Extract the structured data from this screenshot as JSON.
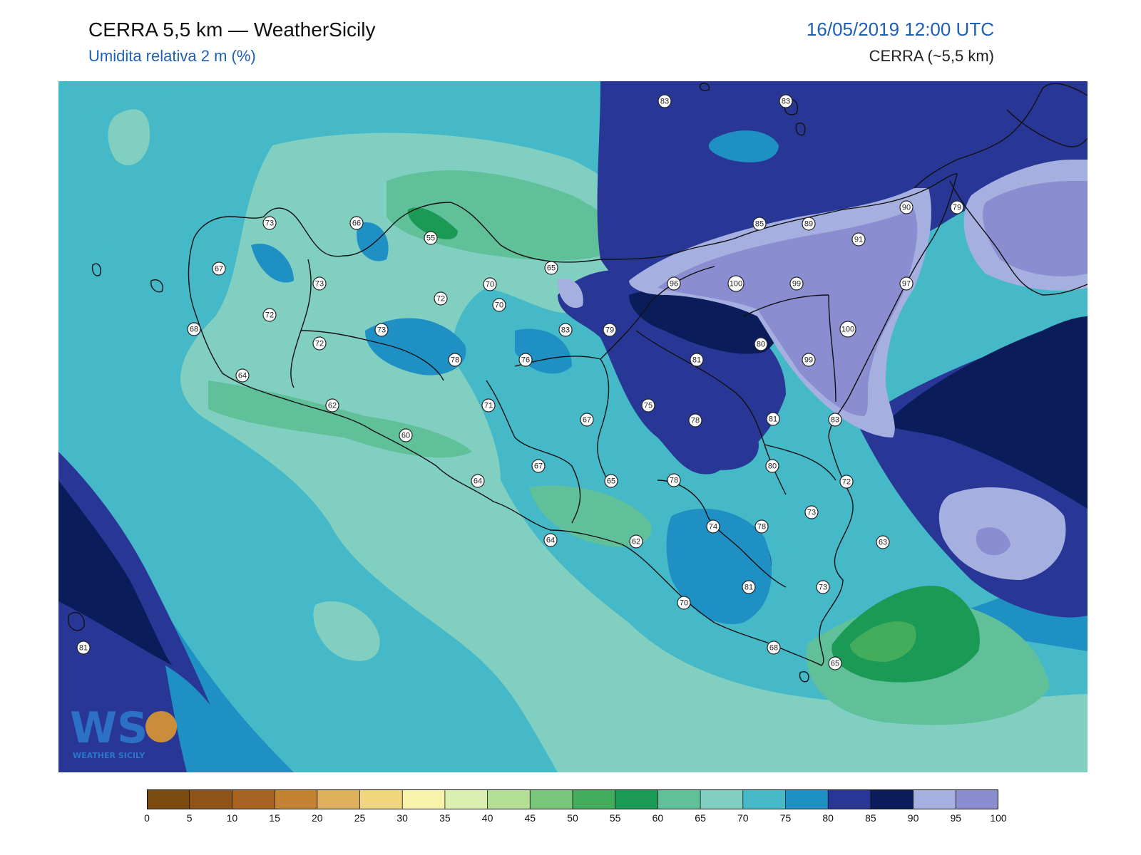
{
  "header": {
    "title": "CERRA 5,5 km — WeatherSicily",
    "subtitle": "Umidita relativa 2 m (%)",
    "datetime": "16/05/2019 12:00 UTC",
    "model": "CERRA (~5,5 km)"
  },
  "logo": {
    "text": "WEATHER SICILY",
    "letters": "WS"
  },
  "colorbar": {
    "ticks": [
      "0",
      "5",
      "10",
      "15",
      "20",
      "25",
      "30",
      "35",
      "40",
      "45",
      "50",
      "55",
      "60",
      "65",
      "70",
      "75",
      "80",
      "85",
      "90",
      "95",
      "100"
    ],
    "colors": [
      "#7a4a0f",
      "#8e5418",
      "#a86222",
      "#c48333",
      "#dfb05c",
      "#f0d67f",
      "#f7f3aa",
      "#dbefb0",
      "#b3df94",
      "#79c57a",
      "#44ad5c",
      "#1b9a55",
      "#5fc09a",
      "#80cfc0",
      "#45b9c8",
      "#1e90c4",
      "#283796",
      "#0b1c5a",
      "#a6b0e0",
      "#8a8ed0"
    ]
  },
  "labels": [
    "73",
    "66",
    "55",
    "67",
    "73",
    "72",
    "68",
    "72",
    "73",
    "72",
    "64",
    "62",
    "60",
    "78",
    "70",
    "65",
    "70",
    "83",
    "79",
    "76",
    "71",
    "67",
    "67",
    "64",
    "64",
    "65",
    "75",
    "62",
    "70",
    "78",
    "78",
    "81",
    "96",
    "100",
    "99",
    "85",
    "89",
    "91",
    "90",
    "79",
    "97",
    "100",
    "99",
    "80",
    "81",
    "80",
    "83",
    "72",
    "73",
    "63",
    "74",
    "78",
    "81",
    "73",
    "68",
    "65",
    "81",
    "83",
    "83"
  ]
}
